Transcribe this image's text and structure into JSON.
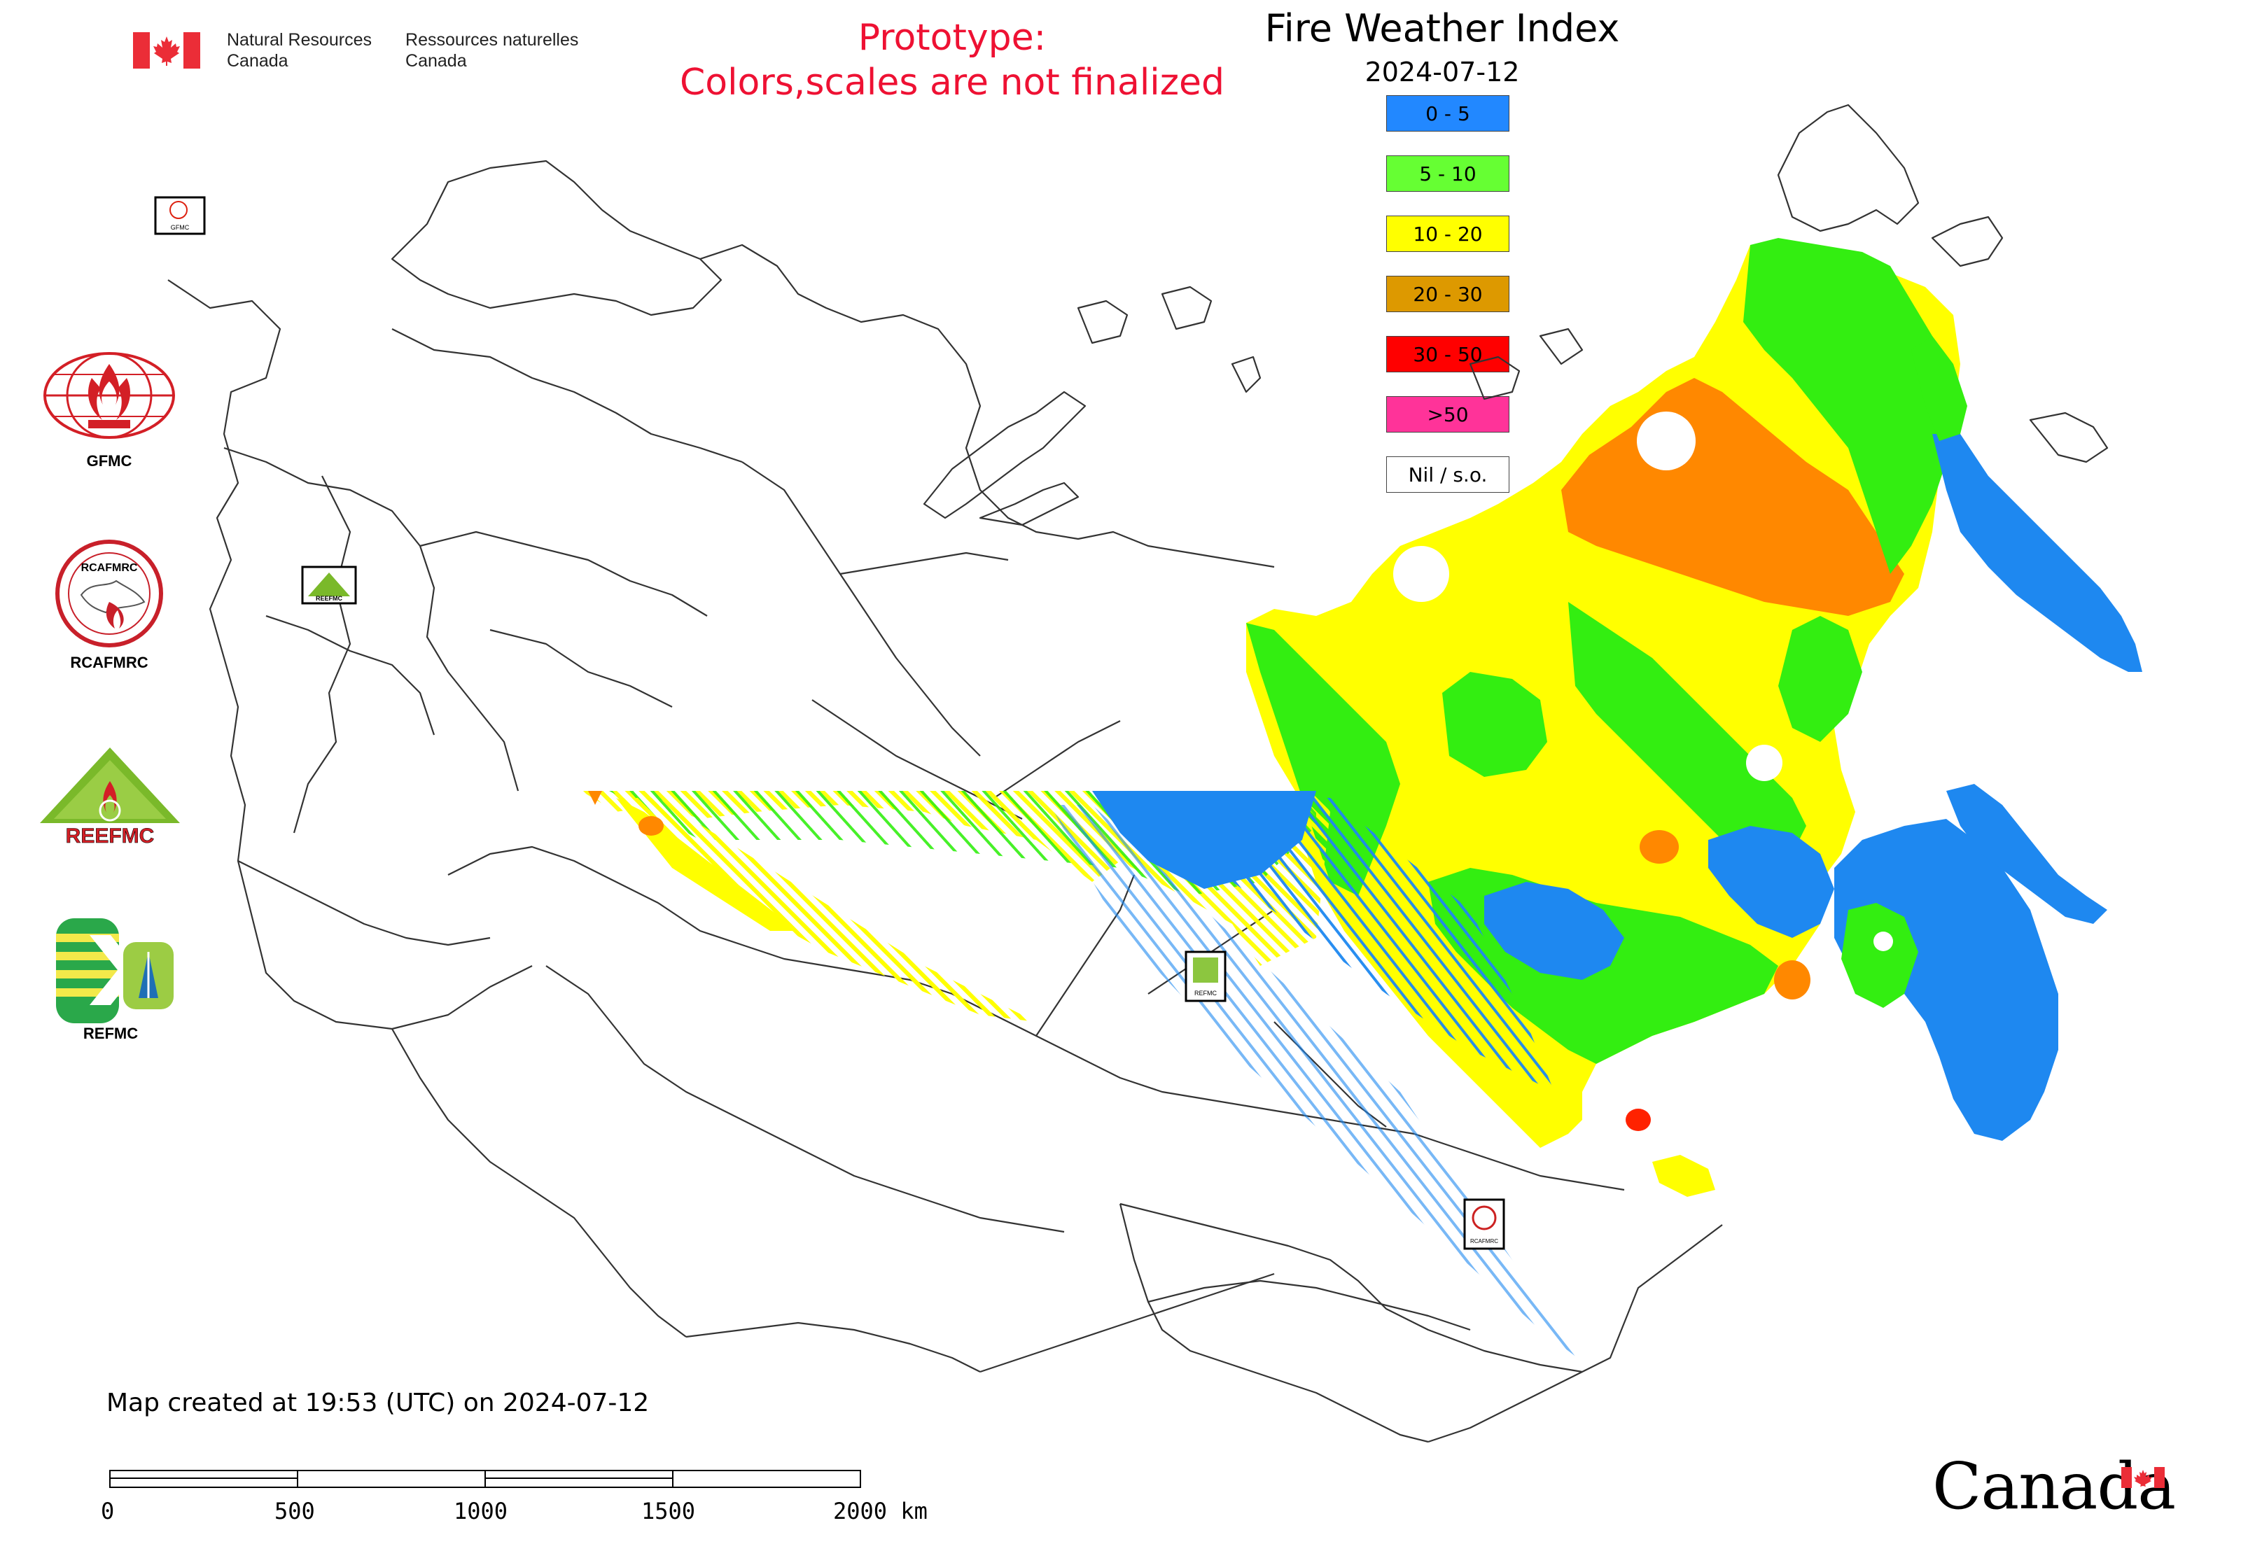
{
  "header": {
    "dept_en": [
      "Natural Resources",
      "Canada"
    ],
    "dept_fr": [
      "Ressources naturelles",
      "Canada"
    ],
    "prototype_line1": "Prototype:",
    "prototype_line2": "Colors,scales are not finalized",
    "title": "Fire Weather Index",
    "date": "2024-07-12"
  },
  "legend": [
    {
      "label": "0 - 5",
      "color": "#2288ff"
    },
    {
      "label": "5 - 10",
      "color": "#66ff33"
    },
    {
      "label": "10 - 20",
      "color": "#ffff00"
    },
    {
      "label": "20 - 30",
      "color": "#dd9900"
    },
    {
      "label": "30 - 50",
      "color": "#ff0000"
    },
    {
      "label": ">50",
      "color": "#ff3399"
    },
    {
      "label": "Nil / s.o.",
      "color": "#ffffff"
    }
  ],
  "map_colors": {
    "fwi_0_5": "#1e88f0",
    "fwi_5_10": "#33ee11",
    "fwi_10_20": "#ffff00",
    "fwi_20_30": "#ff8800",
    "fwi_30_50": "#ff2200",
    "boundary": "#333333"
  },
  "logos": {
    "gfmc": "GFMC",
    "rcafmrc": "RCAFMRC",
    "rcafmrc_ring": "RCAFMRC",
    "reefmc": "REEFMC",
    "refmc": "REFMC"
  },
  "map_markers": {
    "gfmc": "GFMC",
    "reefmc": "REEFMC",
    "refmc": "REFMC",
    "rcafmrc": "RCAFMRC"
  },
  "footer": {
    "created": "Map created at 19:53 (UTC) on 2024-07-12",
    "scale_labels": [
      "0",
      "500",
      "1000",
      "1500",
      "2000 km"
    ],
    "wordmark": "Canada"
  }
}
